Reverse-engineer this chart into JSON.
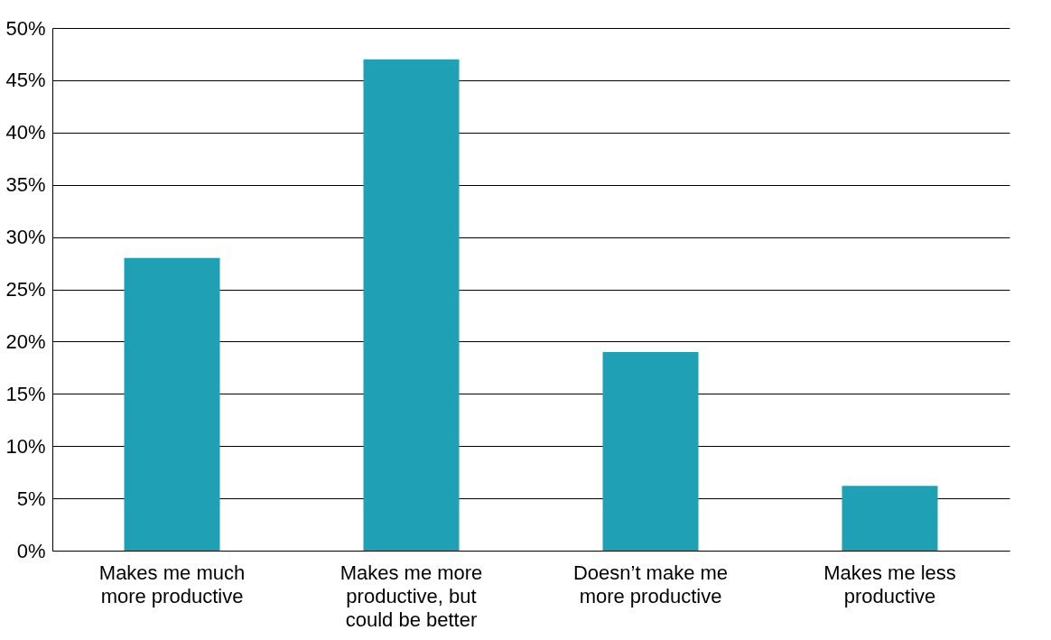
{
  "chart_data": {
    "type": "bar",
    "categories": [
      "Makes me much more productive",
      "Makes me more productive, but could be better",
      "Doesn’t make me more productive",
      "Makes me less productive"
    ],
    "values": [
      28,
      47,
      19,
      6.2
    ],
    "color": "#1fa0b5",
    "ylim": [
      0,
      50
    ],
    "yticks": [
      {
        "value": 0,
        "label": "0%"
      },
      {
        "value": 5,
        "label": "5%"
      },
      {
        "value": 10,
        "label": "10%"
      },
      {
        "value": 15,
        "label": "15%"
      },
      {
        "value": 20,
        "label": "20%"
      },
      {
        "value": 25,
        "label": "25%"
      },
      {
        "value": 30,
        "label": "30%"
      },
      {
        "value": 35,
        "label": "35%"
      },
      {
        "value": 40,
        "label": "40%"
      },
      {
        "value": 45,
        "label": "45%"
      },
      {
        "value": 50,
        "label": "50%"
      }
    ],
    "grid": "y"
  }
}
